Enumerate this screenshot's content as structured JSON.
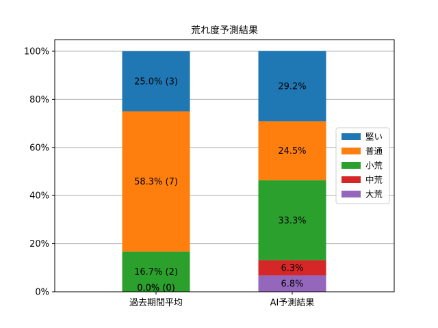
{
  "chart_data": {
    "type": "bar",
    "stacked": true,
    "title": "荒れ度予測結果",
    "xlabel": "",
    "ylabel": "",
    "categories": [
      "過去期間平均",
      "AI予測結果"
    ],
    "ylim": [
      0,
      100
    ],
    "yticks": [
      "0%",
      "20%",
      "40%",
      "60%",
      "80%",
      "100%"
    ],
    "grid": "horizontal",
    "legend_position": "center-right",
    "series": [
      {
        "name": "大荒",
        "color": "#9467bd",
        "values": [
          0.0,
          6.8
        ],
        "labels": [
          "",
          "6.8%"
        ]
      },
      {
        "name": "中荒",
        "color": "#d62728",
        "values": [
          0.0,
          6.3
        ],
        "labels": [
          "",
          "6.3%"
        ]
      },
      {
        "name": "小荒",
        "color": "#2ca02c",
        "values": [
          16.7,
          33.3
        ],
        "labels": [
          "16.7% (2)",
          "33.3%"
        ]
      },
      {
        "name": "普通",
        "color": "#ff7f0e",
        "values": [
          58.3,
          24.5
        ],
        "labels": [
          "58.3% (7)",
          "24.5%"
        ]
      },
      {
        "name": "堅い",
        "color": "#1f77b4",
        "values": [
          25.0,
          29.2
        ],
        "labels": [
          "25.0% (3)",
          "29.2%"
        ]
      }
    ],
    "zero_labels": [
      "0.0% (0)",
      "0.0% (0)"
    ],
    "legend_order": [
      "堅い",
      "普通",
      "小荒",
      "中荒",
      "大荒"
    ]
  }
}
